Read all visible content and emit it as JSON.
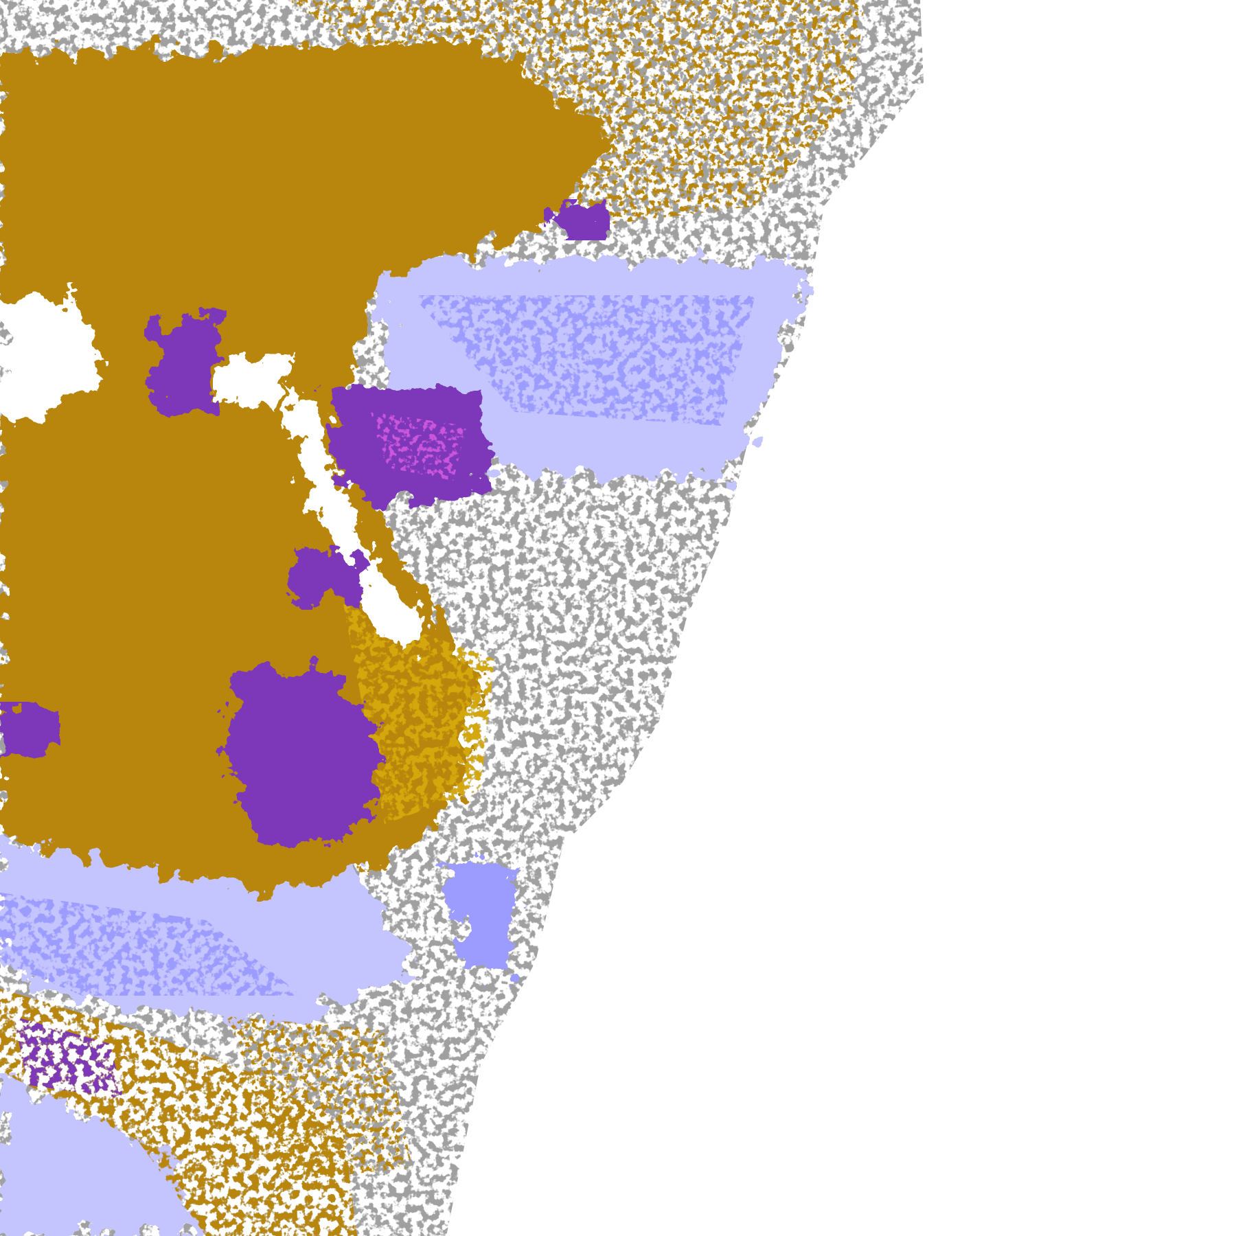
{
  "map": {
    "type": "classified-raster",
    "classes": [
      {
        "key": "background",
        "color": "#ffffff"
      },
      {
        "key": "gold",
        "color": "#b8860b"
      },
      {
        "key": "gold-light",
        "color": "#d4a80a"
      },
      {
        "key": "purple",
        "color": "#7b38b8"
      },
      {
        "key": "magenta",
        "color": "#cc55dd"
      },
      {
        "key": "gray",
        "color": "#a0a0a0"
      },
      {
        "key": "gray-dark",
        "color": "#8c8c8c"
      },
      {
        "key": "lavender",
        "color": "#c4c4ff"
      },
      {
        "key": "periwinkle",
        "color": "#9c9cff"
      },
      {
        "key": "pale",
        "color": "#eeeeff"
      }
    ]
  }
}
